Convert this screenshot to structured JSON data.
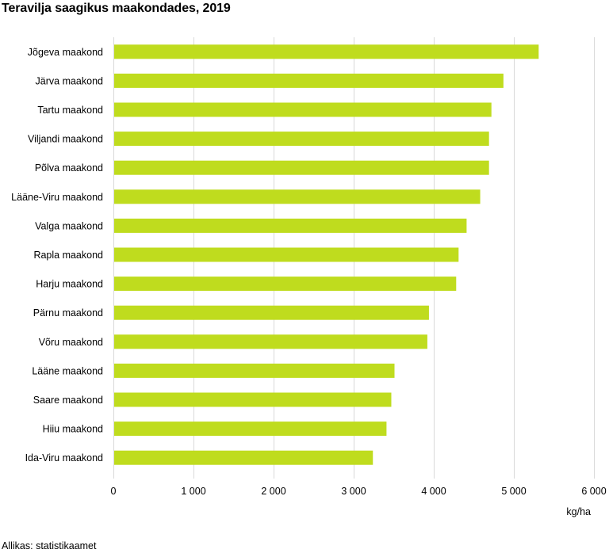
{
  "chart_data": {
    "type": "bar",
    "orientation": "horizontal",
    "title": "Teravilja saagikus maakondades, 2019",
    "categories": [
      "Jõgeva maakond",
      "Järva maakond",
      "Tartu maakond",
      "Viljandi maakond",
      "Põlva maakond",
      "Lääne-Viru maakond",
      "Valga maakond",
      "Rapla maakond",
      "Harju maakond",
      "Pärnu maakond",
      "Võru maakond",
      "Lääne maakond",
      "Saare maakond",
      "Hiiu maakond",
      "Ida-Viru maakond"
    ],
    "values": [
      5310,
      4870,
      4720,
      4690,
      4690,
      4580,
      4410,
      4310,
      4280,
      3940,
      3920,
      3510,
      3470,
      3410,
      3240
    ],
    "xlim": [
      0,
      6000
    ],
    "xticks": [
      0,
      1000,
      2000,
      3000,
      4000,
      5000,
      6000
    ],
    "xtick_labels": [
      "0",
      "1 000",
      "2 000",
      "3 000",
      "4 000",
      "5 000",
      "6 000"
    ],
    "xlabel": "kg/ha",
    "grid": "vertical",
    "bar_color": "#bfdc1e",
    "grid_color": "#d9d9d9"
  },
  "source": "Allikas: statistikaamet"
}
